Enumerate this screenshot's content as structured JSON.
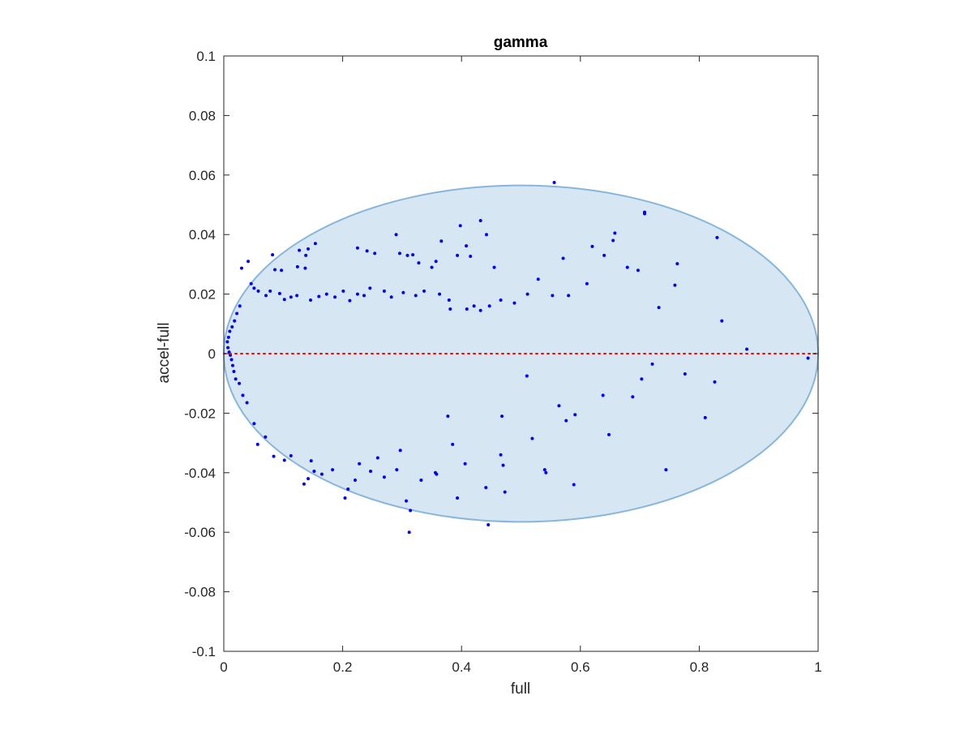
{
  "chart_data": {
    "type": "scatter",
    "title": "gamma",
    "xlabel": "full",
    "ylabel": "accel-full",
    "xlim": [
      0,
      1
    ],
    "ylim": [
      -0.1,
      0.1
    ],
    "x_ticks": [
      0,
      0.2,
      0.4,
      0.6,
      0.8,
      1
    ],
    "x_tick_labels": [
      "0",
      "0.2",
      "0.4",
      "0.6",
      "0.8",
      "1"
    ],
    "y_ticks": [
      -0.1,
      -0.08,
      -0.06,
      -0.04,
      -0.02,
      0,
      0.02,
      0.04,
      0.06,
      0.08,
      0.1
    ],
    "y_tick_labels": [
      "-0.1",
      "-0.08",
      "-0.06",
      "-0.04",
      "-0.02",
      "0",
      "0.02",
      "0.04",
      "0.06",
      "0.08",
      "0.1"
    ],
    "grid": false,
    "box": true,
    "reference_line": {
      "y": 0,
      "x_range": [
        0,
        1
      ],
      "style": "dotted",
      "color": "#ff0000"
    },
    "region": {
      "type": "ellipse",
      "center": [
        0.5,
        0
      ],
      "radius": [
        0.5,
        0.0565
      ],
      "fill": "#d6e6f3",
      "edge": "#87b6dc"
    },
    "marker_color": "#0000ff",
    "points": [
      [
        0.556,
        0.0575
      ],
      [
        0.708,
        0.047
      ],
      [
        0.708,
        0.0475
      ],
      [
        0.83,
        0.039
      ],
      [
        0.432,
        0.0447
      ],
      [
        0.398,
        0.043
      ],
      [
        0.442,
        0.04
      ],
      [
        0.366,
        0.0378
      ],
      [
        0.408,
        0.0362
      ],
      [
        0.393,
        0.033
      ],
      [
        0.415,
        0.0327
      ],
      [
        0.455,
        0.029
      ],
      [
        0.29,
        0.04
      ],
      [
        0.225,
        0.0355
      ],
      [
        0.241,
        0.0345
      ],
      [
        0.254,
        0.0337
      ],
      [
        0.296,
        0.0337
      ],
      [
        0.318,
        0.0332
      ],
      [
        0.309,
        0.033
      ],
      [
        0.328,
        0.0305
      ],
      [
        0.357,
        0.031
      ],
      [
        0.35,
        0.029
      ],
      [
        0.154,
        0.037
      ],
      [
        0.142,
        0.0352
      ],
      [
        0.127,
        0.0347
      ],
      [
        0.138,
        0.033
      ],
      [
        0.124,
        0.0292
      ],
      [
        0.137,
        0.0287
      ],
      [
        0.082,
        0.0332
      ],
      [
        0.041,
        0.031
      ],
      [
        0.03,
        0.0287
      ],
      [
        0.086,
        0.0282
      ],
      [
        0.097,
        0.028
      ],
      [
        0.046,
        0.0235
      ],
      [
        0.051,
        0.022
      ],
      [
        0.058,
        0.021
      ],
      [
        0.071,
        0.0195
      ],
      [
        0.078,
        0.021
      ],
      [
        0.094,
        0.0202
      ],
      [
        0.102,
        0.0182
      ],
      [
        0.113,
        0.019
      ],
      [
        0.123,
        0.0195
      ],
      [
        0.146,
        0.018
      ],
      [
        0.16,
        0.0192
      ],
      [
        0.173,
        0.02
      ],
      [
        0.187,
        0.019
      ],
      [
        0.201,
        0.021
      ],
      [
        0.212,
        0.0178
      ],
      [
        0.225,
        0.02
      ],
      [
        0.236,
        0.0195
      ],
      [
        0.246,
        0.022
      ],
      [
        0.27,
        0.021
      ],
      [
        0.282,
        0.019
      ],
      [
        0.302,
        0.0205
      ],
      [
        0.323,
        0.0195
      ],
      [
        0.337,
        0.021
      ],
      [
        0.363,
        0.02
      ],
      [
        0.379,
        0.018
      ],
      [
        0.381,
        0.015
      ],
      [
        0.409,
        0.015
      ],
      [
        0.421,
        0.016
      ],
      [
        0.432,
        0.0145
      ],
      [
        0.447,
        0.016
      ],
      [
        0.466,
        0.018
      ],
      [
        0.489,
        0.017
      ],
      [
        0.511,
        0.02
      ],
      [
        0.529,
        0.025
      ],
      [
        0.553,
        0.0195
      ],
      [
        0.571,
        0.032
      ],
      [
        0.58,
        0.0195
      ],
      [
        0.611,
        0.0235
      ],
      [
        0.62,
        0.036
      ],
      [
        0.64,
        0.033
      ],
      [
        0.658,
        0.0405
      ],
      [
        0.655,
        0.038
      ],
      [
        0.679,
        0.029
      ],
      [
        0.697,
        0.028
      ],
      [
        0.732,
        0.0155
      ],
      [
        0.759,
        0.023
      ],
      [
        0.763,
        0.0302
      ],
      [
        0.838,
        0.011
      ],
      [
        0.88,
        0.0015
      ],
      [
        0.983,
        -0.0015
      ],
      [
        0.721,
        -0.0035
      ],
      [
        0.776,
        -0.0068
      ],
      [
        0.826,
        -0.0095
      ],
      [
        0.703,
        -0.0085
      ],
      [
        0.688,
        -0.0145
      ],
      [
        0.638,
        -0.014
      ],
      [
        0.564,
        -0.0175
      ],
      [
        0.576,
        -0.0225
      ],
      [
        0.591,
        -0.0205
      ],
      [
        0.51,
        -0.0075
      ],
      [
        0.519,
        -0.0285
      ],
      [
        0.468,
        -0.021
      ],
      [
        0.466,
        -0.034
      ],
      [
        0.47,
        -0.0375
      ],
      [
        0.473,
        -0.0465
      ],
      [
        0.441,
        -0.045
      ],
      [
        0.445,
        -0.0575
      ],
      [
        0.54,
        -0.039
      ],
      [
        0.542,
        -0.04
      ],
      [
        0.589,
        -0.044
      ],
      [
        0.648,
        -0.0272
      ],
      [
        0.744,
        -0.039
      ],
      [
        0.81,
        -0.0215
      ],
      [
        0.393,
        -0.0485
      ],
      [
        0.406,
        -0.037
      ],
      [
        0.385,
        -0.0305
      ],
      [
        0.377,
        -0.021
      ],
      [
        0.332,
        -0.0425
      ],
      [
        0.356,
        -0.04
      ],
      [
        0.358,
        -0.0405
      ],
      [
        0.307,
        -0.0495
      ],
      [
        0.314,
        -0.0527
      ],
      [
        0.312,
        -0.06
      ],
      [
        0.291,
        -0.039
      ],
      [
        0.297,
        -0.0325
      ],
      [
        0.27,
        -0.0415
      ],
      [
        0.247,
        -0.0395
      ],
      [
        0.259,
        -0.035
      ],
      [
        0.228,
        -0.037
      ],
      [
        0.221,
        -0.0425
      ],
      [
        0.209,
        -0.0455
      ],
      [
        0.204,
        -0.0485
      ],
      [
        0.183,
        -0.039
      ],
      [
        0.165,
        -0.0405
      ],
      [
        0.152,
        -0.0395
      ],
      [
        0.147,
        -0.036
      ],
      [
        0.142,
        -0.042
      ],
      [
        0.135,
        -0.0438
      ],
      [
        0.113,
        -0.0343
      ],
      [
        0.102,
        -0.0358
      ],
      [
        0.084,
        -0.0345
      ],
      [
        0.07,
        -0.028
      ],
      [
        0.057,
        -0.0305
      ],
      [
        0.051,
        -0.0235
      ],
      [
        0.039,
        -0.0165
      ],
      [
        0.032,
        -0.014
      ],
      [
        0.026,
        -0.01
      ],
      [
        0.02,
        -0.0085
      ],
      [
        0.017,
        -0.006
      ],
      [
        0.015,
        -0.004
      ],
      [
        0.013,
        -0.002
      ],
      [
        0.011,
        -0.0005
      ],
      [
        0.009,
        0.0005
      ],
      [
        0.007,
        0.002
      ],
      [
        0.006,
        0.004
      ],
      [
        0.008,
        0.0055
      ],
      [
        0.01,
        0.0075
      ],
      [
        0.014,
        0.009
      ],
      [
        0.018,
        0.011
      ],
      [
        0.022,
        0.0135
      ],
      [
        0.027,
        0.016
      ]
    ]
  }
}
